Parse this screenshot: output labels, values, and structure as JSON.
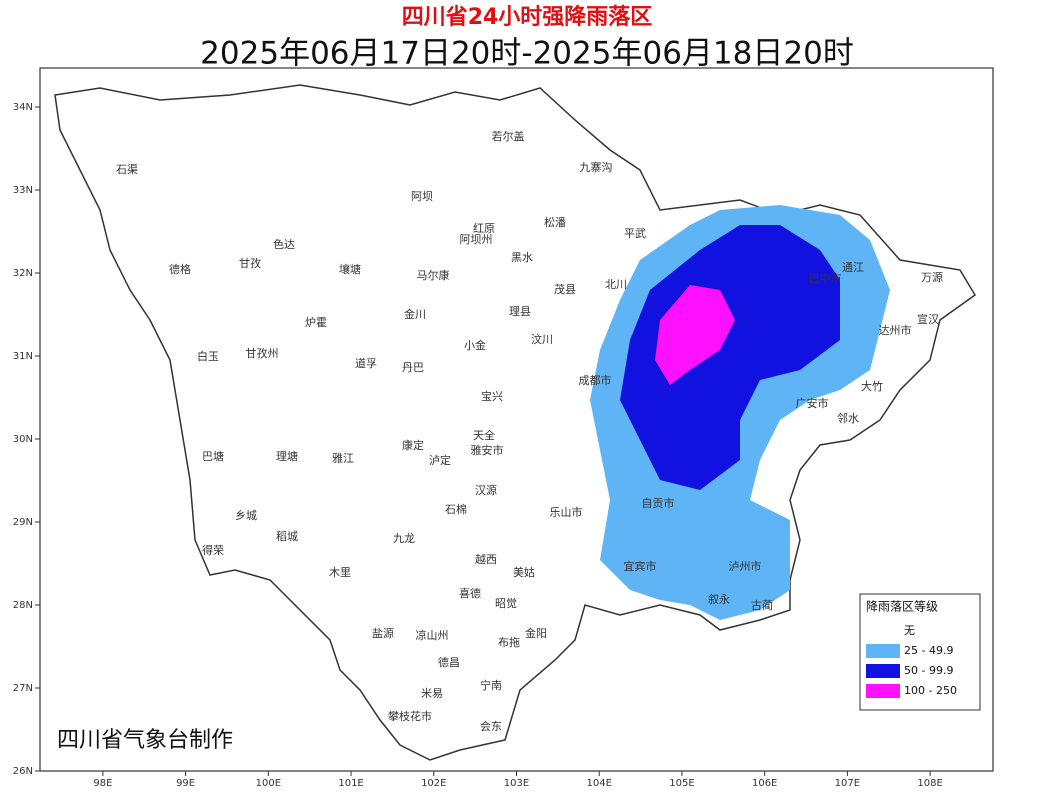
{
  "header": {
    "title": "四川省24小时强降雨落区",
    "subtitle": "2025年06月17日20时-2025年06月18日20时"
  },
  "map": {
    "lonlim": [
      97.24,
      108.76
    ],
    "latlim": [
      26,
      34.47
    ],
    "lonticks": [
      {
        "value": 98,
        "label": "98E"
      },
      {
        "value": 99,
        "label": "99E"
      },
      {
        "value": 100,
        "label": "100E"
      },
      {
        "value": 101,
        "label": "101E"
      },
      {
        "value": 102,
        "label": "102E"
      },
      {
        "value": 103,
        "label": "103E"
      },
      {
        "value": 104,
        "label": "104E"
      },
      {
        "value": 105,
        "label": "105E"
      },
      {
        "value": 106,
        "label": "106E"
      },
      {
        "value": 107,
        "label": "107E"
      },
      {
        "value": 108,
        "label": "108E"
      }
    ],
    "latticks": [
      {
        "value": 26,
        "label": "26N"
      },
      {
        "value": 27,
        "label": "27N"
      },
      {
        "value": 28,
        "label": "28N"
      },
      {
        "value": 29,
        "label": "29N"
      },
      {
        "value": 30,
        "label": "30N"
      },
      {
        "value": 31,
        "label": "31N"
      },
      {
        "value": 32,
        "label": "32N"
      },
      {
        "value": 33,
        "label": "33N"
      },
      {
        "value": 34,
        "label": "34N"
      }
    ],
    "places": [
      "石渠",
      "德格",
      "甘孜",
      "色达",
      "白玉",
      "甘孜州",
      "巴塘",
      "理塘",
      "乡城",
      "稻城",
      "得荣",
      "雅江",
      "道孚",
      "炉霍",
      "壤塘",
      "阿坝",
      "若尔盖",
      "红原",
      "阿坝州",
      "马尔康",
      "金川",
      "小金",
      "丹巴",
      "康定",
      "泸定",
      "九龙",
      "木里",
      "盐源",
      "凉山州",
      "德昌",
      "米易",
      "攀枝花市",
      "会东",
      "宁南",
      "九寨沟",
      "松潘",
      "黑水",
      "茂县",
      "理县",
      "汶川",
      "平武",
      "北川",
      "成都市",
      "雅安市",
      "乐山市",
      "自贡市",
      "宜宾市",
      "泸州市",
      "巴中市",
      "达州市",
      "广安市",
      "通江",
      "万源",
      "宣汉",
      "大竹",
      "邻水",
      "古蔺",
      "叙永",
      "金阳",
      "布拖",
      "昭觉",
      "美姑",
      "越西",
      "喜德",
      "石棉",
      "汉源",
      "天全",
      "宝兴"
    ]
  },
  "legend": {
    "title": "降雨落区等级",
    "entries": [
      {
        "label": "无",
        "color": "#ffffff"
      },
      {
        "label": "25 - 49.9",
        "color": "#5fb4f5"
      },
      {
        "label": "50 - 99.9",
        "color": "#1212e0"
      },
      {
        "label": "100 - 250",
        "color": "#ff10ff"
      }
    ]
  },
  "credit": "四川省气象台制作"
}
